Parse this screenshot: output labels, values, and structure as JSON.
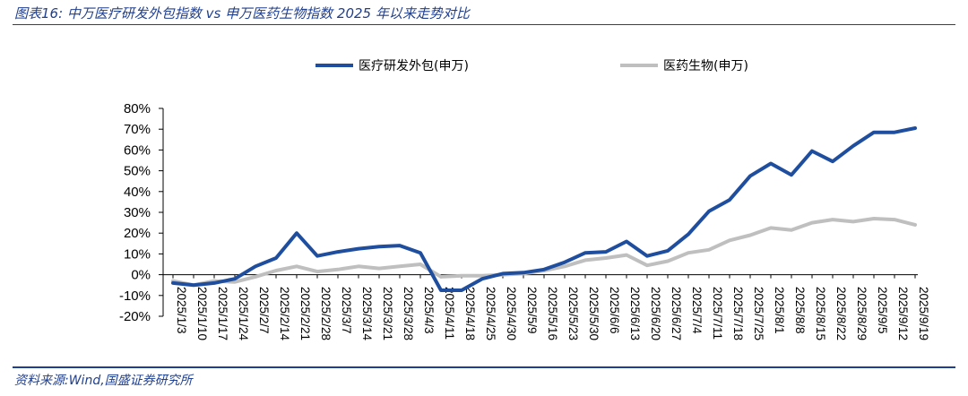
{
  "header": {
    "title": "图表16:  中万医疗研发外包指数 vs 申万医药生物指数 2025 年以来走势对比"
  },
  "footer": {
    "source": "资料来源:Wind,国盛证券研究所"
  },
  "colors": {
    "series1": "#1f4e9e",
    "series2": "#bfbfbf",
    "accent": "#1f3f8f"
  },
  "chart_data": {
    "type": "line",
    "title": "",
    "xlabel": "",
    "ylabel": "",
    "ylim": [
      -20,
      80
    ],
    "yticks": [
      -20,
      -10,
      0,
      10,
      20,
      30,
      40,
      50,
      60,
      70,
      80
    ],
    "ytick_labels": [
      "-20%",
      "-10%",
      "0%",
      "10%",
      "20%",
      "30%",
      "40%",
      "50%",
      "60%",
      "70%",
      "80%"
    ],
    "legend_position": "top",
    "categories": [
      "2025/1/3",
      "2025/1/10",
      "2025/1/17",
      "2025/1/24",
      "2025/2/7",
      "2025/2/14",
      "2025/2/21",
      "2025/2/28",
      "2025/3/7",
      "2025/3/14",
      "2025/3/21",
      "2025/3/28",
      "2025/4/3",
      "2025/4/11",
      "2025/4/18",
      "2025/4/25",
      "2025/4/30",
      "2025/5/9",
      "2025/5/16",
      "2025/5/23",
      "2025/5/30",
      "2025/6/6",
      "2025/6/13",
      "2025/6/20",
      "2025/6/27",
      "2025/7/4",
      "2025/7/11",
      "2025/7/18",
      "2025/7/25",
      "2025/8/1",
      "2025/8/8",
      "2025/8/15",
      "2025/8/22",
      "2025/8/29",
      "2025/9/5",
      "2025/9/12",
      "2025/9/19"
    ],
    "series": [
      {
        "name": "医疗研发外包(申万)",
        "values": [
          -4,
          -5,
          -4,
          -2,
          4,
          8,
          20,
          9,
          11,
          12.5,
          13.5,
          14,
          10.5,
          -7.5,
          -7.5,
          -2,
          0.5,
          1,
          2.5,
          6,
          10.5,
          11,
          16,
          9,
          11.5,
          19.5,
          30.5,
          36,
          47.5,
          53.5,
          48,
          59.5,
          54.5,
          62,
          68.5,
          68.5,
          70.5
        ]
      },
      {
        "name": "医药生物(申万)",
        "values": [
          -3,
          -5,
          -3,
          -3.5,
          -1,
          2,
          4,
          1.5,
          2.5,
          4,
          3,
          4,
          5,
          -1,
          -0.5,
          -0.5,
          0,
          0.5,
          2,
          4,
          7,
          8,
          9.5,
          4.5,
          6.5,
          10.5,
          12,
          16.5,
          19,
          22.5,
          21.5,
          25,
          26.5,
          25.5,
          27,
          26.5,
          24
        ]
      }
    ]
  }
}
